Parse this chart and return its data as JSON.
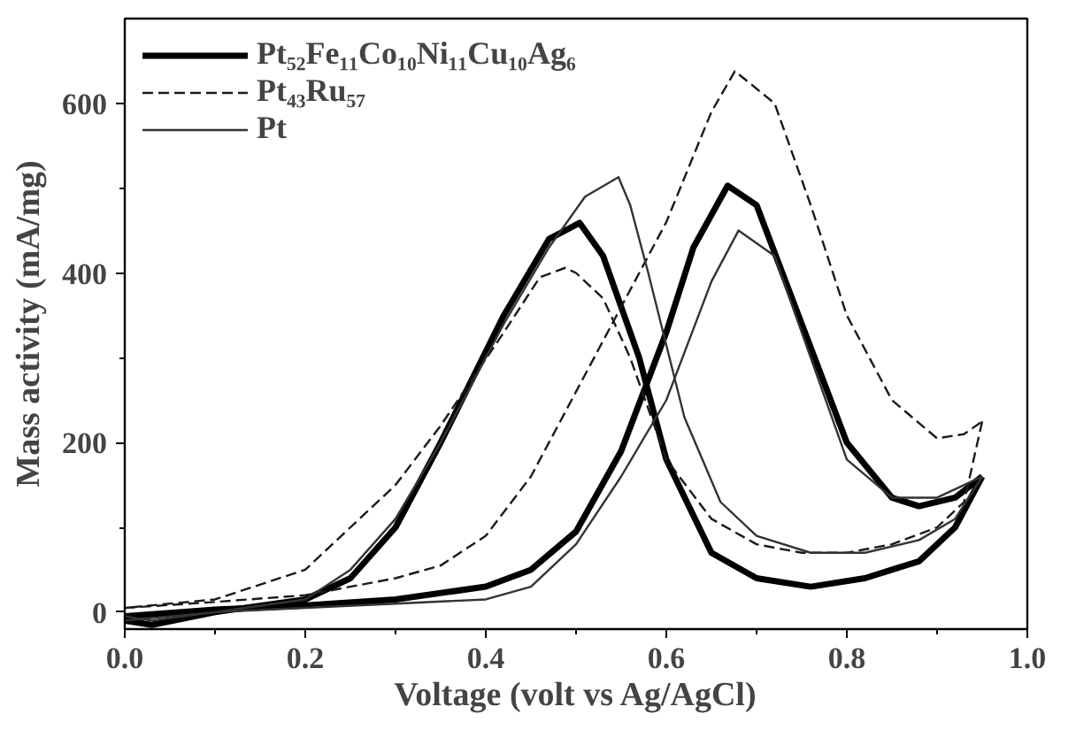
{
  "chart_data": {
    "type": "line",
    "xlabel": "Voltage (volt vs Ag/AgCl)",
    "ylabel": "Mass activity (mA/mg)",
    "xlim": [
      0,
      1.0
    ],
    "ylim": [
      -20,
      700
    ],
    "xticks": [
      {
        "value": 0,
        "label": "0.0"
      },
      {
        "value": 0.2,
        "label": "0.2"
      },
      {
        "value": 0.4,
        "label": "0.4"
      },
      {
        "value": 0.6,
        "label": "0.6"
      },
      {
        "value": 0.8,
        "label": "0.8"
      },
      {
        "value": 1.0,
        "label": "1.0"
      }
    ],
    "yticks": [
      0,
      200,
      400,
      600
    ],
    "legend": "top left",
    "grid": false,
    "marker": "none",
    "series": [
      {
        "name": "Pt₅₂Fe₁₁Co₁₀Ni₁₁Cu₁₀Ag₆",
        "color": "#000000",
        "line_style": "solid",
        "x": [
          0,
          0.1,
          0.2,
          0.3,
          0.4,
          0.45,
          0.5,
          0.55,
          0.6,
          0.63,
          0.668,
          0.7,
          0.75,
          0.8,
          0.85,
          0.88,
          0.92,
          0.95
        ],
        "values": [
          -5,
          3,
          8,
          15,
          30,
          50,
          95,
          190,
          330,
          430,
          503,
          480,
          340,
          200,
          135,
          125,
          135,
          160
        ]
      },
      {
        "color": "#000000",
        "line_style": "solid",
        "x": [
          0.95,
          0.92,
          0.88,
          0.82,
          0.76,
          0.7,
          0.65,
          0.6,
          0.57,
          0.53,
          0.504,
          0.47,
          0.42,
          0.35,
          0.3,
          0.25,
          0.2,
          0.1,
          0.03,
          0
        ],
        "values": [
          160,
          100,
          60,
          40,
          30,
          40,
          70,
          180,
          300,
          420,
          459,
          440,
          350,
          200,
          100,
          40,
          15,
          0,
          -15,
          -10
        ]
      },
      {
        "name": "Pt₄₃Ru₅₇",
        "color": "#1a1a1a",
        "line_style": "dashed",
        "x": [
          0,
          0.1,
          0.2,
          0.3,
          0.35,
          0.4,
          0.45,
          0.5,
          0.55,
          0.6,
          0.65,
          0.676,
          0.72,
          0.76,
          0.8,
          0.85,
          0.9,
          0.93,
          0.95
        ],
        "values": [
          5,
          12,
          20,
          40,
          55,
          90,
          160,
          260,
          360,
          460,
          590,
          638,
          600,
          480,
          350,
          250,
          205,
          210,
          225
        ]
      },
      {
        "color": "#1a1a1a",
        "line_style": "dashed",
        "x": [
          0.95,
          0.93,
          0.9,
          0.85,
          0.8,
          0.75,
          0.7,
          0.65,
          0.6,
          0.56,
          0.53,
          0.5,
          0.488,
          0.46,
          0.42,
          0.35,
          0.3,
          0.25,
          0.2,
          0.1,
          0
        ],
        "values": [
          225,
          130,
          100,
          80,
          70,
          70,
          80,
          110,
          180,
          300,
          370,
          400,
          406,
          395,
          330,
          220,
          150,
          100,
          50,
          15,
          5
        ]
      },
      {
        "name": "Pt",
        "color": "#333333",
        "line_style": "solid",
        "x": [
          0,
          0.1,
          0.2,
          0.3,
          0.4,
          0.45,
          0.5,
          0.55,
          0.6,
          0.65,
          0.68,
          0.72,
          0.76,
          0.8,
          0.85,
          0.9,
          0.93,
          0.95
        ],
        "values": [
          -10,
          0,
          5,
          10,
          15,
          30,
          80,
          160,
          250,
          390,
          450,
          420,
          300,
          180,
          135,
          135,
          150,
          160
        ]
      },
      {
        "color": "#333333",
        "line_style": "solid",
        "x": [
          0.95,
          0.92,
          0.88,
          0.82,
          0.76,
          0.7,
          0.66,
          0.62,
          0.58,
          0.56,
          0.547,
          0.51,
          0.47,
          0.42,
          0.35,
          0.3,
          0.25,
          0.2,
          0.1,
          0.03,
          0
        ],
        "values": [
          160,
          110,
          85,
          70,
          70,
          90,
          130,
          230,
          400,
          480,
          513,
          490,
          430,
          340,
          200,
          110,
          50,
          15,
          0,
          -10,
          -5
        ]
      }
    ]
  }
}
